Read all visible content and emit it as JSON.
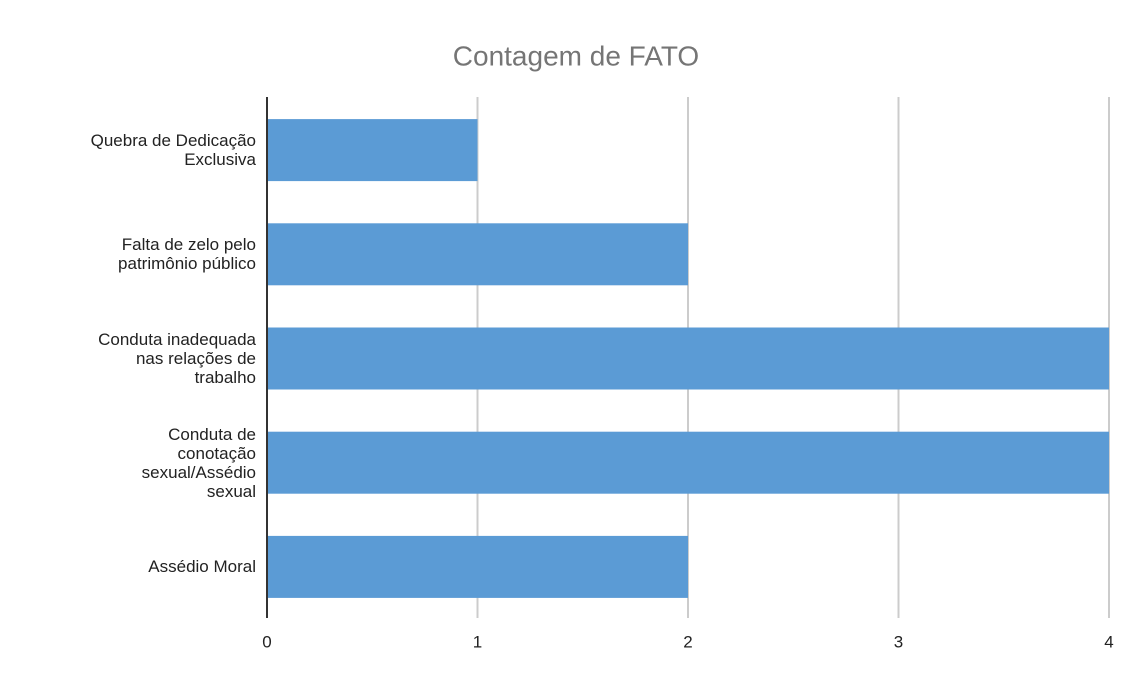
{
  "chart_data": {
    "type": "bar",
    "orientation": "horizontal",
    "title": "Contagem de FATO",
    "categories": [
      "Quebra de Dedicação\nExclusiva",
      "Falta de zelo pelo\npatrimônio público",
      "Conduta inadequada\nnas relações de\ntrabalho",
      "Conduta de\nconotação\nsexual/Assédio\nsexual",
      "Assédio Moral"
    ],
    "values": [
      1,
      2,
      4,
      4,
      2
    ],
    "color": "#5b9bd5",
    "xlim": [
      0,
      4
    ],
    "xticks": [
      0,
      1,
      2,
      3,
      4
    ],
    "grid": true
  }
}
